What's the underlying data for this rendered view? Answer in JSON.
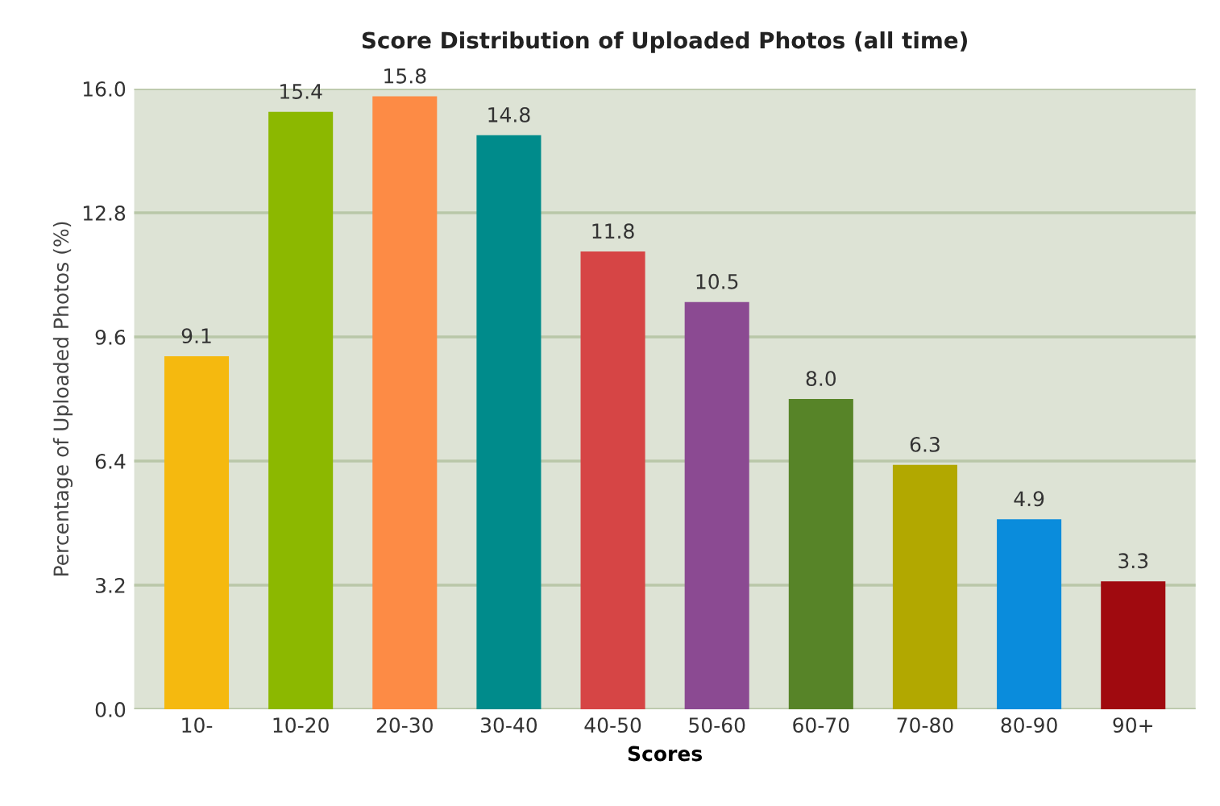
{
  "chart_data": {
    "type": "bar",
    "title": "Score Distribution of Uploaded Photos (all time)",
    "xlabel": "Scores",
    "ylabel": "Percentage of Uploaded Photos (%)",
    "categories": [
      "10-",
      "10-20",
      "20-30",
      "30-40",
      "40-50",
      "50-60",
      "60-70",
      "70-80",
      "80-90",
      "90+"
    ],
    "values": [
      9.1,
      15.4,
      15.8,
      14.8,
      11.8,
      10.5,
      8.0,
      6.3,
      4.9,
      3.3
    ],
    "value_labels": [
      "9.1",
      "15.4",
      "15.8",
      "14.8",
      "11.8",
      "10.5",
      "8.0",
      "6.3",
      "4.9",
      "3.3"
    ],
    "colors": [
      "#f5b90f",
      "#8cb800",
      "#fd8b45",
      "#008b8b",
      "#d64545",
      "#8b4a92",
      "#578428",
      "#b2a800",
      "#0a8cdc",
      "#a00a0f"
    ],
    "ylim": [
      0,
      16
    ],
    "yticks": [
      {
        "value": 0,
        "label": "0.0"
      },
      {
        "value": 3.2,
        "label": "3.2"
      },
      {
        "value": 6.4,
        "label": "6.4"
      },
      {
        "value": 9.6,
        "label": "9.6"
      },
      {
        "value": 12.8,
        "label": "12.8"
      },
      {
        "value": 16,
        "label": "16.0"
      }
    ],
    "grid": "y"
  }
}
